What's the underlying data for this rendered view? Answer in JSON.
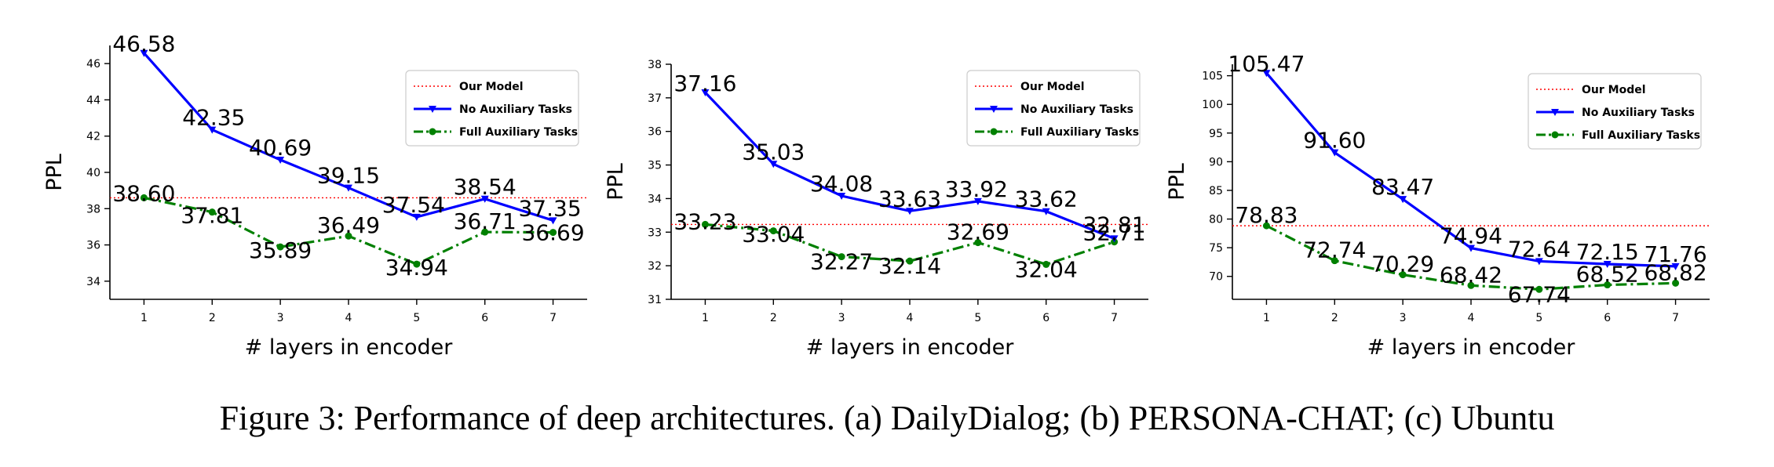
{
  "caption": "Figure 3: Performance of deep architectures. (a) DailyDialog; (b) PERSONA-CHAT; (c) Ubuntu",
  "colors": {
    "our_model": "#ff0000",
    "no_aux": "#0000ff",
    "full_aux": "#008000",
    "axis": "#000000"
  },
  "chart_data": [
    {
      "type": "line",
      "xlabel": "# layers in encoder",
      "ylabel": "PPL",
      "x": [
        1,
        2,
        3,
        4,
        5,
        6,
        7
      ],
      "xlim": [
        0.5,
        7.5
      ],
      "ylim": [
        33,
        47
      ],
      "yticks": [
        34,
        36,
        38,
        40,
        42,
        44,
        46
      ],
      "legend_position": "top-right",
      "series": [
        {
          "name": "Our Model",
          "style": "dotted",
          "values": [
            38.6,
            38.6,
            38.6,
            38.6,
            38.6,
            38.6,
            38.6
          ],
          "labels": []
        },
        {
          "name": "No Auxiliary Tasks",
          "style": "solid-triangle",
          "values": [
            46.58,
            42.35,
            40.69,
            39.15,
            37.54,
            38.54,
            37.35
          ],
          "labels": [
            "46.58",
            "42.35",
            "40.69",
            "39.15",
            "37.54",
            "38.54",
            "37.35"
          ]
        },
        {
          "name": "Full Auxiliary Tasks",
          "style": "dashdot-dot",
          "values": [
            38.6,
            37.81,
            35.89,
            36.49,
            34.94,
            36.71,
            36.69
          ],
          "labels": [
            "38.60",
            "37.81",
            "35.89",
            "36.49",
            "34.94",
            "36.71",
            "36.69"
          ]
        }
      ]
    },
    {
      "type": "line",
      "xlabel": "# layers in encoder",
      "ylabel": "PPL",
      "x": [
        1,
        2,
        3,
        4,
        5,
        6,
        7
      ],
      "xlim": [
        0.5,
        7.5
      ],
      "ylim": [
        31,
        38
      ],
      "yticks": [
        31,
        32,
        33,
        34,
        35,
        36,
        37,
        38
      ],
      "legend_position": "top-right",
      "series": [
        {
          "name": "Our Model",
          "style": "dotted",
          "values": [
            33.23,
            33.23,
            33.23,
            33.23,
            33.23,
            33.23,
            33.23
          ],
          "labels": []
        },
        {
          "name": "No Auxiliary Tasks",
          "style": "solid-triangle",
          "values": [
            37.16,
            35.03,
            34.08,
            33.63,
            33.92,
            33.62,
            32.81
          ],
          "labels": [
            "37.16",
            "35.03",
            "34.08",
            "33.63",
            "33.92",
            "33.62",
            "32.81"
          ]
        },
        {
          "name": "Full Auxiliary Tasks",
          "style": "dashdot-dot",
          "values": [
            33.23,
            33.04,
            32.27,
            32.14,
            32.69,
            32.04,
            32.71
          ],
          "labels": [
            "33.23",
            "33.04",
            "32.27",
            "32.14",
            "32.69",
            "32.04",
            "32.71"
          ]
        }
      ]
    },
    {
      "type": "line",
      "xlabel": "# layers in encoder",
      "ylabel": "PPL",
      "x": [
        1,
        2,
        3,
        4,
        5,
        6,
        7
      ],
      "xlim": [
        0.5,
        7.5
      ],
      "ylim": [
        66,
        107
      ],
      "yticks": [
        70,
        75,
        80,
        85,
        90,
        95,
        100,
        105
      ],
      "legend_position": "top-right",
      "series": [
        {
          "name": "Our Model",
          "style": "dotted",
          "values": [
            78.83,
            78.83,
            78.83,
            78.83,
            78.83,
            78.83,
            78.83
          ],
          "labels": []
        },
        {
          "name": "No Auxiliary Tasks",
          "style": "solid-triangle",
          "values": [
            105.47,
            91.6,
            83.47,
            74.94,
            72.64,
            72.15,
            71.76
          ],
          "labels": [
            "105.47",
            "91.60",
            "83.47",
            "74.94",
            "72.64",
            "72.15",
            "71.76"
          ]
        },
        {
          "name": "Full Auxiliary Tasks",
          "style": "dashdot-dot",
          "values": [
            78.83,
            72.74,
            70.29,
            68.42,
            67.74,
            68.52,
            68.82
          ],
          "labels": [
            "78.83",
            "72.74",
            "70.29",
            "68.42",
            "67.74",
            "68.52",
            "68.82"
          ]
        }
      ]
    }
  ]
}
